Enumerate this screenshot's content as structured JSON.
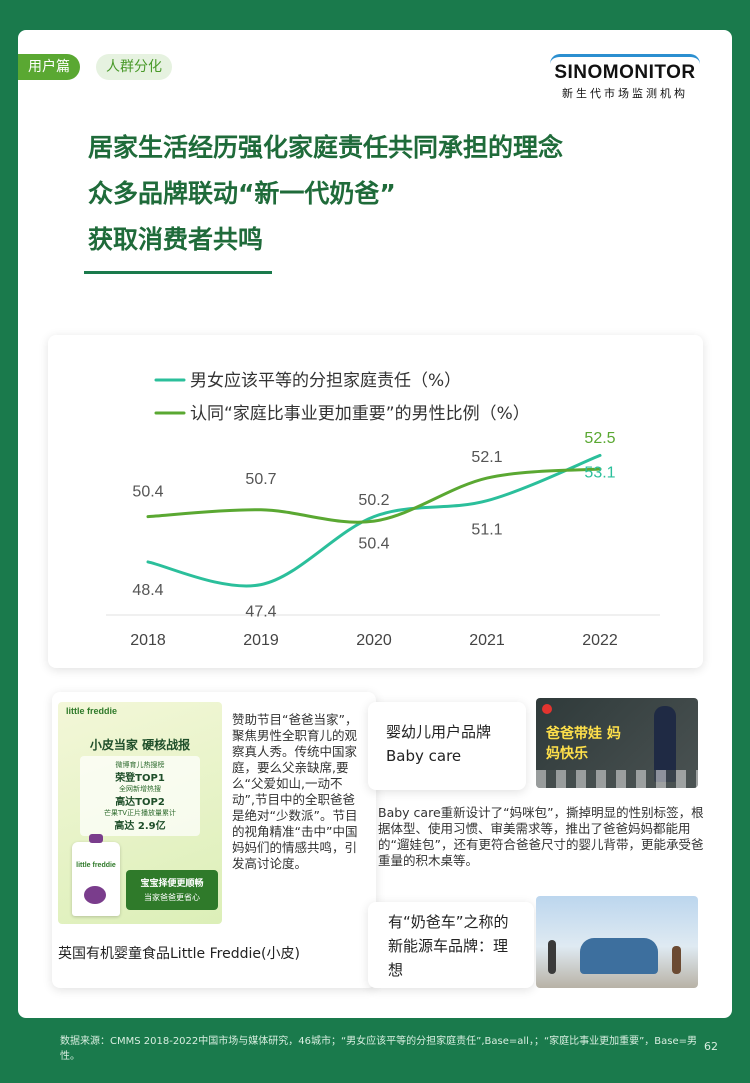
{
  "header": {
    "tag_section": "用户篇",
    "tag_topic": "人群分化",
    "logo_main": "SINOMONITOR",
    "logo_sub": "新生代市场监测机构"
  },
  "headline": {
    "line1": "居家生活经历强化家庭责任共同承担的理念",
    "line2": "众多品牌联动“新一代奶爸”",
    "line3": "获取消费者共鸣"
  },
  "chart_data": {
    "type": "line",
    "title": "",
    "xlabel": "",
    "ylabel": "",
    "categories": [
      "2018",
      "2019",
      "2020",
      "2021",
      "2022"
    ],
    "series": [
      {
        "name": "男女应该平等的分担家庭责任（%）",
        "color": "#2bbf9b",
        "values": [
          48.4,
          47.4,
          50.4,
          51.1,
          53.1
        ]
      },
      {
        "name": "认同“家庭比事业更加重要”的男性比例（%）",
        "color": "#5aa832",
        "values": [
          50.4,
          50.7,
          50.2,
          52.1,
          52.5
        ]
      }
    ],
    "ylim": [
      46.5,
      54
    ],
    "grid": false,
    "legend": "top-left"
  },
  "cards": {
    "freddie": {
      "title": "英国有机婴童食品Little Freddie(小皮)",
      "desc": "赞助节目“爸爸当家”，聚焦男性全职育儿的观察真人秀。传统中国家庭，要么父亲缺席,要么“父爱如山,一动不动”,节目中的全职爸爸是绝对“少数派”。节目的视角精准“击中”中国妈妈们的情感共鸣，引发高讨论度。",
      "img_brand": "little freddie",
      "img_line1": "小皮当家  硬核战报",
      "img_line2": "微博育儿热搜榜",
      "img_line3": "荣登TOP1",
      "img_line4": "全网新增热搜",
      "img_line5": "高达TOP2",
      "img_line6": "芒果TV正片播放量累计",
      "img_line7": "高达 2.9亿",
      "img_line8": "宝宝择便更顺畅",
      "img_line9": "当家爸爸更省心",
      "img_pack": "little freddie"
    },
    "babycare": {
      "title": "婴幼儿用户品牌 Baby care",
      "desc": "Baby care重新设计了“妈咪包”，撕掉明显的性别标签，根据体型、使用习惯、审美需求等，推出了爸爸妈妈都能用的“遛娃包”，还有更符合爸爸尺寸的婴儿背带，更能承受爸重量的积木桌等。",
      "img_text": "爸爸带娃 妈妈快乐"
    },
    "lixiang": {
      "title": "有“奶爸车”之称的新能源车品牌：理想"
    }
  },
  "footer": {
    "source": "数据来源：CMMS 2018-2022中国市场与媒体研究，46城市；“男女应该平等的分担家庭责任”,Base=all，；“家庭比事业更加重要”，Base=男性。",
    "page": "62"
  }
}
